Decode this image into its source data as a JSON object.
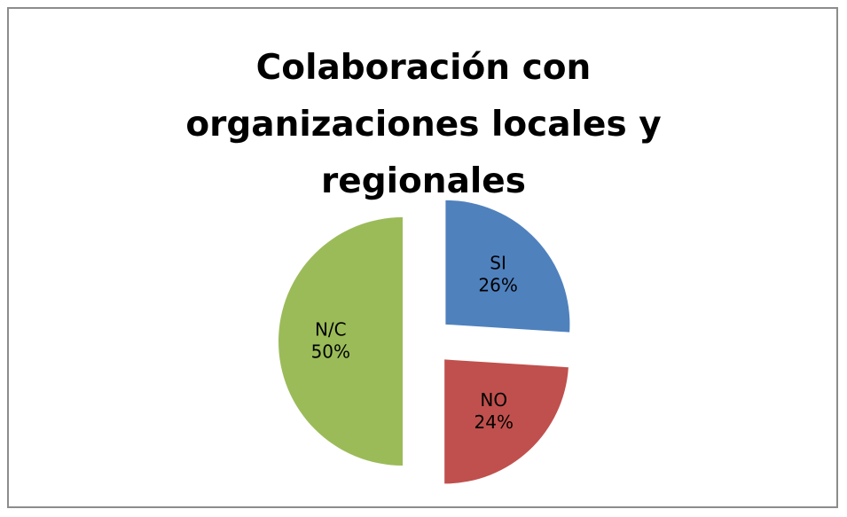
{
  "chart_data": {
    "type": "pie",
    "title": "Colaboración con organizaciones locales y regionales",
    "categories": [
      "SI",
      "NO",
      "N/C"
    ],
    "values": [
      26,
      24,
      50
    ],
    "value_labels": [
      "26%",
      "24%",
      "50%"
    ],
    "colors": [
      "#4f81bd",
      "#c0504d",
      "#9bbb59"
    ]
  }
}
